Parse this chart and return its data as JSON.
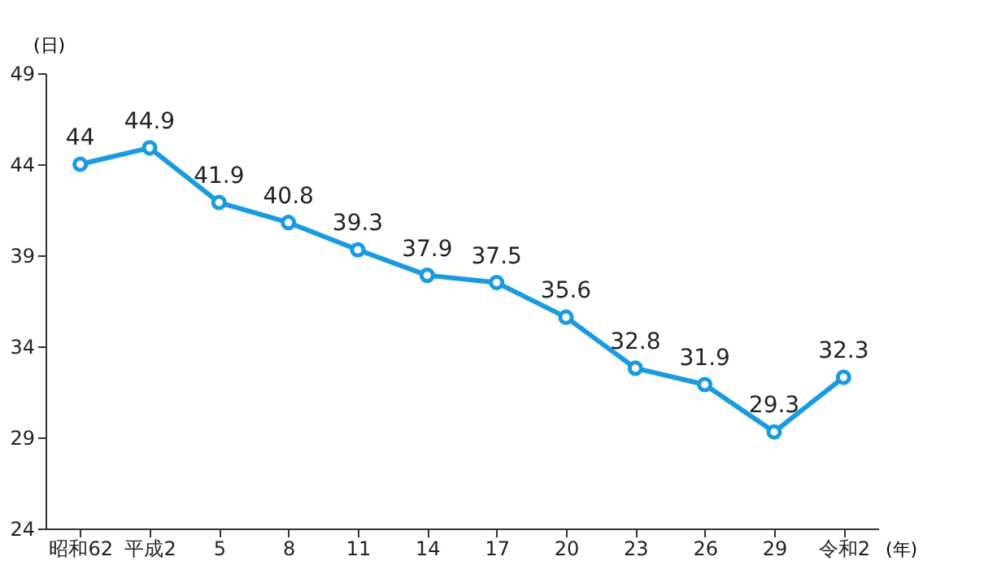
{
  "chart_data": {
    "type": "line",
    "ylabel": "(日)",
    "xlabel": "(年)",
    "categories": [
      "昭和62",
      "平成2",
      "5",
      "8",
      "11",
      "14",
      "17",
      "20",
      "23",
      "26",
      "29",
      "令和2"
    ],
    "series": [
      {
        "color": "#1a9be0",
        "values": [
          44,
          44.9,
          41.9,
          40.8,
          39.3,
          37.9,
          37.5,
          35.6,
          32.8,
          31.9,
          29.3,
          32.3
        ]
      }
    ],
    "ylim": [
      24,
      49
    ],
    "yticks": [
      24,
      29,
      34,
      39,
      44,
      49
    ],
    "grid": false,
    "marker": "circle",
    "line_style": "solid",
    "data_labels": true
  }
}
